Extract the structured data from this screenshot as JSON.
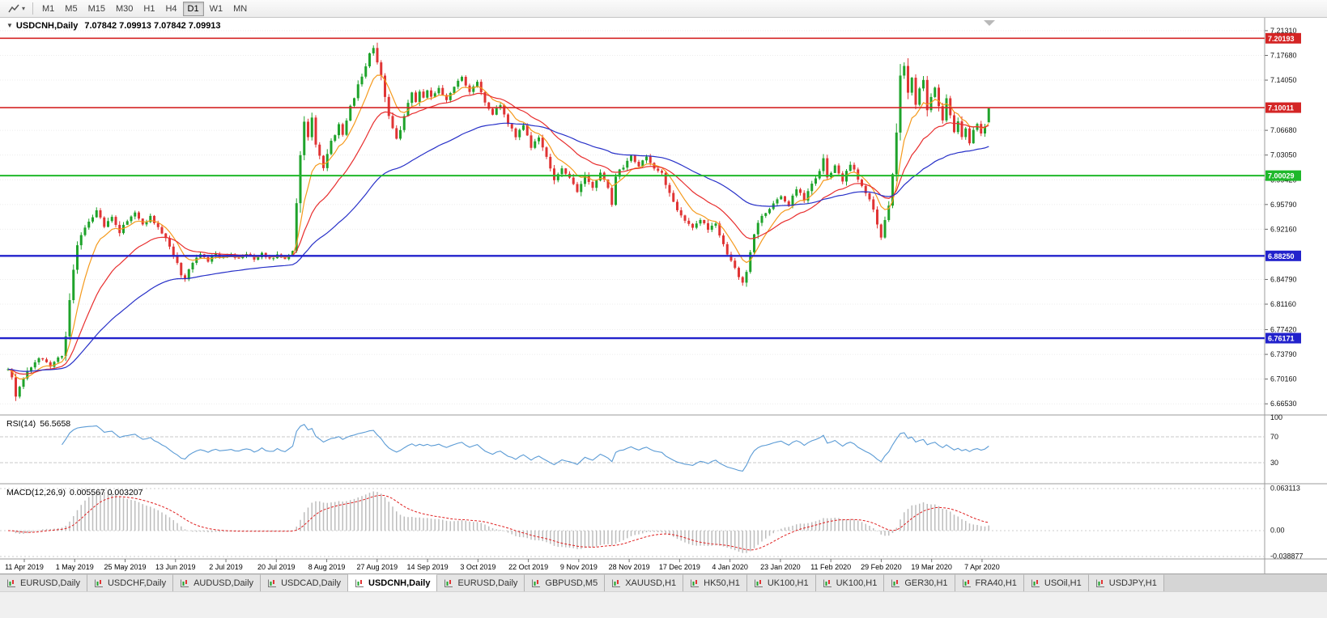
{
  "icons": {
    "collapse_glyph": "▼",
    "caret_glyph": "▾"
  },
  "toolbar": {
    "timeframes": [
      "M1",
      "M5",
      "M15",
      "M30",
      "H1",
      "H4",
      "D1",
      "W1",
      "MN"
    ],
    "active_timeframe": "D1"
  },
  "chart": {
    "title": "USDCNH,Daily",
    "ohlc_line": "7.07842 7.09913 7.07842 7.09913",
    "price_axis": {
      "max": 7.2225,
      "min": 6.6525,
      "labels": [
        "7.21310",
        "7.17680",
        "7.14050",
        "7.06680",
        "7.03050",
        "6.99420",
        "6.95790",
        "6.92160",
        "6.84790",
        "6.81160",
        "6.77420",
        "6.73790",
        "6.70160",
        "6.66530"
      ]
    },
    "hlines": [
      {
        "price": 7.20193,
        "color": "#d42525",
        "label": "7.20193",
        "width": 1.6
      },
      {
        "price": 7.10011,
        "color": "#d42525",
        "label": "7.10011",
        "width": 1.6
      },
      {
        "price": 7.00029,
        "color": "#1fb82a",
        "label": "7.00029",
        "width": 2
      },
      {
        "price": 6.8825,
        "color": "#2222cc",
        "label": "6.88250",
        "width": 2.4
      },
      {
        "price": 6.76171,
        "color": "#2222cc",
        "label": "6.76171",
        "width": 2.4
      }
    ],
    "dates": [
      "11 Apr 2019",
      "1 May 2019",
      "25 May 2019",
      "13 Jun 2019",
      "2 Jul 2019",
      "20 Jul 2019",
      "8 Aug 2019",
      "27 Aug 2019",
      "14 Sep 2019",
      "3 Oct 2019",
      "22 Oct 2019",
      "9 Nov 2019",
      "28 Nov 2019",
      "17 Dec 2019",
      "4 Jan 2020",
      "23 Jan 2020",
      "11 Feb 2020",
      "29 Feb 2020",
      "19 Mar 2020",
      "7 Apr 2020"
    ]
  },
  "chart_data": {
    "type": "candlestick",
    "symbol": "USDCNH",
    "timeframe": "Daily",
    "current_bar": {
      "open": "7.07842",
      "high": "7.09913",
      "low": "7.07842",
      "close": "7.09913"
    },
    "levels": [
      7.20193,
      7.10011,
      7.00029,
      6.8825,
      6.76171
    ],
    "total_bars": 256,
    "noise_seed": 11,
    "colors": {
      "up": "#1fa32b",
      "down": "#e03434"
    },
    "moving_averages": [
      {
        "name": "fast",
        "period": 8,
        "color": "#f59a1d"
      },
      {
        "name": "mid",
        "period": 21,
        "color": "#e82e2e"
      },
      {
        "name": "slow",
        "period": 55,
        "color": "#2730c8"
      }
    ],
    "anchors": [
      [
        0,
        6.716
      ],
      [
        1,
        6.704
      ],
      [
        2,
        6.676
      ],
      [
        3,
        6.692
      ],
      [
        5,
        6.712
      ],
      [
        7,
        6.728
      ],
      [
        9,
        6.733
      ],
      [
        11,
        6.722
      ],
      [
        13,
        6.732
      ],
      [
        14,
        6.737
      ],
      [
        15,
        6.765
      ],
      [
        16,
        6.818
      ],
      [
        17,
        6.862
      ],
      [
        18,
        6.9
      ],
      [
        19,
        6.915
      ],
      [
        21,
        6.932
      ],
      [
        23,
        6.95
      ],
      [
        25,
        6.926
      ],
      [
        27,
        6.938
      ],
      [
        29,
        6.918
      ],
      [
        31,
        6.934
      ],
      [
        33,
        6.947
      ],
      [
        35,
        6.928
      ],
      [
        37,
        6.94
      ],
      [
        39,
        6.924
      ],
      [
        41,
        6.908
      ],
      [
        43,
        6.884
      ],
      [
        45,
        6.856
      ],
      [
        46,
        6.848
      ],
      [
        48,
        6.874
      ],
      [
        50,
        6.886
      ],
      [
        52,
        6.876
      ],
      [
        54,
        6.884
      ],
      [
        56,
        6.879
      ],
      [
        58,
        6.885
      ],
      [
        60,
        6.878
      ],
      [
        62,
        6.884
      ],
      [
        64,
        6.879
      ],
      [
        66,
        6.885
      ],
      [
        68,
        6.879
      ],
      [
        70,
        6.884
      ],
      [
        72,
        6.88
      ],
      [
        74,
        6.892
      ],
      [
        75,
        6.958
      ],
      [
        76,
        7.032
      ],
      [
        77,
        7.08
      ],
      [
        78,
        7.056
      ],
      [
        79,
        7.086
      ],
      [
        80,
        7.048
      ],
      [
        81,
        7.028
      ],
      [
        82,
        7.012
      ],
      [
        83,
        7.032
      ],
      [
        84,
        7.052
      ],
      [
        85,
        7.062
      ],
      [
        86,
        7.076
      ],
      [
        87,
        7.058
      ],
      [
        88,
        7.082
      ],
      [
        89,
        7.102
      ],
      [
        90,
        7.116
      ],
      [
        91,
        7.132
      ],
      [
        92,
        7.146
      ],
      [
        93,
        7.162
      ],
      [
        94,
        7.178
      ],
      [
        95,
        7.19
      ],
      [
        96,
        7.168
      ],
      [
        97,
        7.148
      ],
      [
        98,
        7.118
      ],
      [
        99,
        7.088
      ],
      [
        100,
        7.068
      ],
      [
        101,
        7.054
      ],
      [
        102,
        7.068
      ],
      [
        103,
        7.088
      ],
      [
        104,
        7.108
      ],
      [
        105,
        7.122
      ],
      [
        106,
        7.11
      ],
      [
        107,
        7.126
      ],
      [
        108,
        7.114
      ],
      [
        109,
        7.126
      ],
      [
        110,
        7.118
      ],
      [
        112,
        7.128
      ],
      [
        114,
        7.112
      ],
      [
        116,
        7.132
      ],
      [
        118,
        7.146
      ],
      [
        120,
        7.122
      ],
      [
        122,
        7.138
      ],
      [
        124,
        7.106
      ],
      [
        126,
        7.09
      ],
      [
        128,
        7.106
      ],
      [
        130,
        7.076
      ],
      [
        132,
        7.058
      ],
      [
        134,
        7.072
      ],
      [
        136,
        7.042
      ],
      [
        138,
        7.058
      ],
      [
        140,
        7.026
      ],
      [
        142,
        6.996
      ],
      [
        144,
        7.012
      ],
      [
        146,
        6.996
      ],
      [
        148,
        6.978
      ],
      [
        150,
        7.002
      ],
      [
        152,
        6.984
      ],
      [
        154,
        7.004
      ],
      [
        155,
        6.996
      ],
      [
        156,
        6.984
      ],
      [
        157,
        6.956
      ],
      [
        158,
        7.0
      ],
      [
        160,
        7.014
      ],
      [
        162,
        7.028
      ],
      [
        164,
        7.016
      ],
      [
        166,
        7.03
      ],
      [
        168,
        7.012
      ],
      [
        170,
        7.002
      ],
      [
        172,
        6.974
      ],
      [
        174,
        6.95
      ],
      [
        176,
        6.932
      ],
      [
        178,
        6.922
      ],
      [
        180,
        6.936
      ],
      [
        182,
        6.92
      ],
      [
        184,
        6.93
      ],
      [
        186,
        6.898
      ],
      [
        188,
        6.874
      ],
      [
        190,
        6.852
      ],
      [
        191,
        6.843
      ],
      [
        192,
        6.86
      ],
      [
        193,
        6.888
      ],
      [
        194,
        6.914
      ],
      [
        195,
        6.932
      ],
      [
        197,
        6.946
      ],
      [
        199,
        6.958
      ],
      [
        201,
        6.97
      ],
      [
        203,
        6.958
      ],
      [
        205,
        6.98
      ],
      [
        207,
        6.966
      ],
      [
        209,
        6.988
      ],
      [
        211,
        7.006
      ],
      [
        212,
        7.024
      ],
      [
        213,
        6.998
      ],
      [
        215,
        7.014
      ],
      [
        217,
        6.994
      ],
      [
        219,
        7.018
      ],
      [
        221,
        6.996
      ],
      [
        223,
        6.976
      ],
      [
        225,
        6.95
      ],
      [
        226,
        6.928
      ],
      [
        227,
        6.91
      ],
      [
        228,
        6.934
      ],
      [
        229,
        6.956
      ],
      [
        230,
        7.004
      ],
      [
        231,
        7.066
      ],
      [
        232,
        7.148
      ],
      [
        233,
        7.162
      ],
      [
        234,
        7.12
      ],
      [
        235,
        7.146
      ],
      [
        236,
        7.106
      ],
      [
        237,
        7.126
      ],
      [
        238,
        7.142
      ],
      [
        239,
        7.098
      ],
      [
        240,
        7.118
      ],
      [
        241,
        7.13
      ],
      [
        242,
        7.1
      ],
      [
        243,
        7.08
      ],
      [
        244,
        7.112
      ],
      [
        245,
        7.09
      ],
      [
        246,
        7.062
      ],
      [
        247,
        7.078
      ],
      [
        248,
        7.056
      ],
      [
        249,
        7.072
      ],
      [
        250,
        7.05
      ],
      [
        251,
        7.066
      ],
      [
        252,
        7.078
      ],
      [
        253,
        7.062
      ],
      [
        254,
        7.072
      ],
      [
        255,
        7.099
      ]
    ]
  },
  "rsi": {
    "label": "RSI(14)",
    "value": "56.5658",
    "color": "#5b9bd5",
    "level_values": [
      100,
      70,
      30
    ],
    "levels": [
      "100",
      "70",
      "30"
    ]
  },
  "macd": {
    "label": "MACD(12,26,9)",
    "values": "0.005567 0.003207",
    "signal_color": "#e02020",
    "max": 0.063113,
    "min": -0.038877,
    "axis": [
      "0.063113",
      "0.00",
      "-0.038877"
    ]
  },
  "tabs": [
    {
      "label": "EURUSD,Daily",
      "active": false
    },
    {
      "label": "USDCHF,Daily",
      "active": false
    },
    {
      "label": "AUDUSD,Daily",
      "active": false
    },
    {
      "label": "USDCAD,Daily",
      "active": false
    },
    {
      "label": "USDCNH,Daily",
      "active": true
    },
    {
      "label": "EURUSD,Daily",
      "active": false
    },
    {
      "label": "GBPUSD,M5",
      "active": false
    },
    {
      "label": "XAUUSD,H1",
      "active": false
    },
    {
      "label": "HK50,H1",
      "active": false
    },
    {
      "label": "UK100,H1",
      "active": false
    },
    {
      "label": "UK100,H1",
      "active": false
    },
    {
      "label": "GER30,H1",
      "active": false
    },
    {
      "label": "FRA40,H1",
      "active": false
    },
    {
      "label": "USOil,H1",
      "active": false
    },
    {
      "label": "USDJPY,H1",
      "active": false
    }
  ]
}
